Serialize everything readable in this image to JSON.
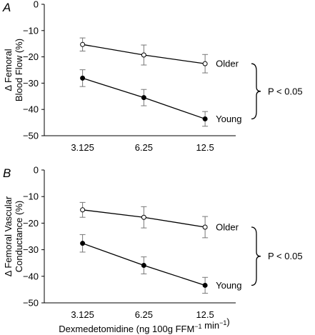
{
  "chart_data": [
    {
      "type": "line",
      "panel_label": "A",
      "categories": [
        "3.125",
        "6.25",
        "12.5"
      ],
      "ylabel_lines": [
        "Δ Femoral",
        "Blood Flow (%)"
      ],
      "xlabel": "",
      "ylim": [
        -50,
        0
      ],
      "yticks": [
        "0",
        "−10",
        "−20",
        "−30",
        "−40",
        "−50"
      ],
      "series": [
        {
          "name": "Older",
          "marker": "open",
          "values": [
            -15.3,
            -19.3,
            -22.6
          ],
          "errors": [
            2.5,
            3.8,
            3.5
          ]
        },
        {
          "name": "Young",
          "marker": "filled",
          "values": [
            -28.1,
            -35.5,
            -43.6
          ],
          "errors": [
            3.2,
            3.1,
            2.8
          ]
        }
      ],
      "annotation": "P < 0.05"
    },
    {
      "type": "line",
      "panel_label": "B",
      "categories": [
        "3.125",
        "6.25",
        "12.5"
      ],
      "ylabel_lines": [
        "Δ Femoral Vascular",
        "Conductance (%)"
      ],
      "xlabel": "Dexmedetomidine (ng 100g FFM⁻¹ min⁻¹)",
      "ylim": [
        -50,
        0
      ],
      "yticks": [
        "0",
        "−10",
        "−20",
        "−30",
        "−40",
        "−50"
      ],
      "series": [
        {
          "name": "Older",
          "marker": "open",
          "values": [
            -15.0,
            -17.8,
            -21.5
          ],
          "errors": [
            2.8,
            4.0,
            4.0
          ]
        },
        {
          "name": "Young",
          "marker": "filled",
          "values": [
            -27.6,
            -35.9,
            -43.4
          ],
          "errors": [
            3.3,
            3.2,
            3.0
          ]
        }
      ],
      "annotation": "P < 0.05"
    }
  ]
}
